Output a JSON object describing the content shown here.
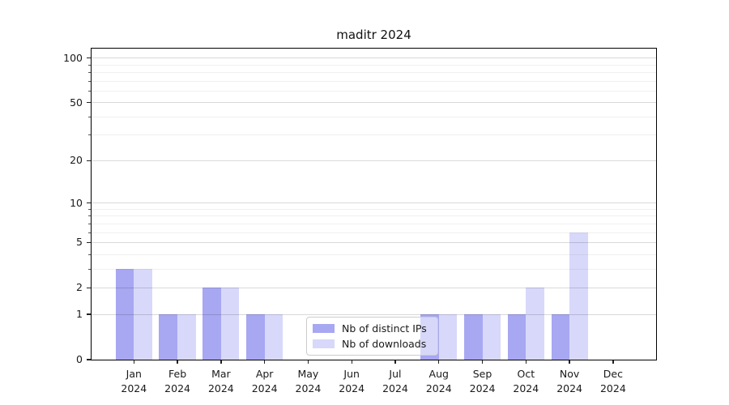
{
  "chart_data": {
    "type": "bar",
    "title": "maditr 2024",
    "yscale": "log1p",
    "grid": "on",
    "legend_position": "lower center",
    "categories": [
      "Jan",
      "Feb",
      "Mar",
      "Apr",
      "May",
      "Jun",
      "Jul",
      "Aug",
      "Sep",
      "Oct",
      "Nov",
      "Dec"
    ],
    "x_year_line": "2024",
    "series": [
      {
        "name": "Nb of distinct IPs",
        "color": "#a7a7f2",
        "values": [
          3,
          1,
          2,
          1,
          0,
          0,
          0,
          1,
          1,
          1,
          1,
          0
        ]
      },
      {
        "name": "Nb of downloads",
        "color": "#d8d8fa",
        "values": [
          3,
          1,
          2,
          1,
          0,
          0,
          0,
          1,
          1,
          2,
          6,
          0
        ]
      }
    ],
    "y_major_ticks": [
      0,
      1,
      2,
      5,
      10,
      20,
      50,
      100
    ],
    "y_minor_ticks": [
      3,
      4,
      6,
      7,
      8,
      9,
      30,
      40,
      60,
      70,
      80,
      90
    ],
    "y_max": 115.7
  },
  "colors": {
    "background": "#ffffff",
    "spine": "#000000",
    "grid_major": "rgba(0,0,0,0.15)",
    "grid_minor": "rgba(0,0,0,0.06)",
    "text": "#1a1a1a",
    "legend_border": "#cccccc"
  }
}
